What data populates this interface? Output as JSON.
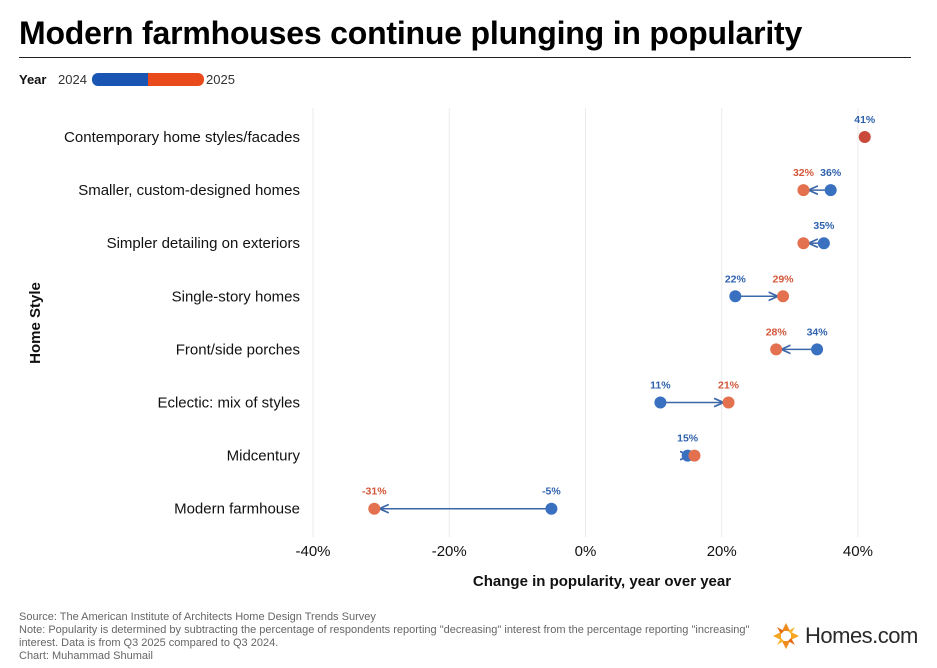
{
  "title": "Modern farmhouses continue plunging in popularity",
  "legend": {
    "title": "Year",
    "year1": "2024",
    "year2": "2025"
  },
  "colors": {
    "y2024": "#3a70c0",
    "y2025": "#e3704f",
    "y2025_only": "#c9493a",
    "connector": "#3b66a8"
  },
  "chart_data": {
    "type": "dumbbell",
    "ylabel": "Home Style",
    "xlabel": "Change in popularity, year over year",
    "xlim": [
      -40,
      45
    ],
    "xticks": [
      -40,
      -20,
      0,
      20,
      40
    ],
    "xtick_labels": [
      "-40%",
      "-20%",
      "0%",
      "20%",
      "40%"
    ],
    "grid": true,
    "categories": [
      "Contemporary home styles/facades",
      "Smaller, custom-designed homes",
      "Simpler detailing on exteriors",
      "Single-story homes",
      "Front/side porches",
      "Eclectic: mix of styles",
      "Midcentury",
      "Modern farmhouse"
    ],
    "series": [
      {
        "name": "2024",
        "values": [
          null,
          36,
          35,
          22,
          34,
          11,
          15,
          -5
        ]
      },
      {
        "name": "2025",
        "values": [
          41,
          32,
          32,
          29,
          28,
          21,
          16,
          -31
        ]
      }
    ],
    "labels_2024": [
      "",
      "36%",
      "35%",
      "22%",
      "34%",
      "11%",
      "15%",
      "-5%"
    ],
    "labels_2025": [
      "41%",
      "32%",
      "",
      "29%",
      "28%",
      "21%",
      "",
      "-31%"
    ]
  },
  "footer": {
    "source": "Source: The American Institute of Architects Home Design Trends Survey",
    "note": "Note: Popularity is determined by subtracting the percentage of respondents reporting \"decreasing\" interest from the percentage reporting \"increasing\" interest. Data is from Q3 2025 compared to Q3 2024.",
    "credit": "Chart: Muhammad Shumail"
  },
  "logo": {
    "text": "Homes.com",
    "icon": "homes-com-logo-icon"
  }
}
